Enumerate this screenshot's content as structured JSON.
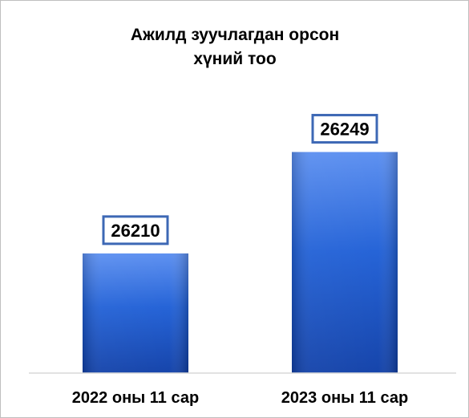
{
  "chart_data": {
    "type": "bar",
    "title_lines": [
      "Ажилд зуучлагдан орсон",
      "хүний тоо"
    ],
    "categories": [
      "2022 оны 11 сар",
      "2023 оны 11 сар"
    ],
    "values": [
      26210,
      26249
    ],
    "data_labels": [
      "26210",
      "26249"
    ],
    "xlabel": "",
    "ylabel": "",
    "grid": false,
    "legend": "none",
    "axis_ylim": [
      26164,
      26255
    ],
    "colors": {
      "bar_top": "#5a8ef0",
      "bar_mid": "#1f5fd6",
      "bar_bottom": "#0f3fa8",
      "label_border": "#3d68b5",
      "axis": "#d9d9d9",
      "text": "#000000"
    }
  }
}
